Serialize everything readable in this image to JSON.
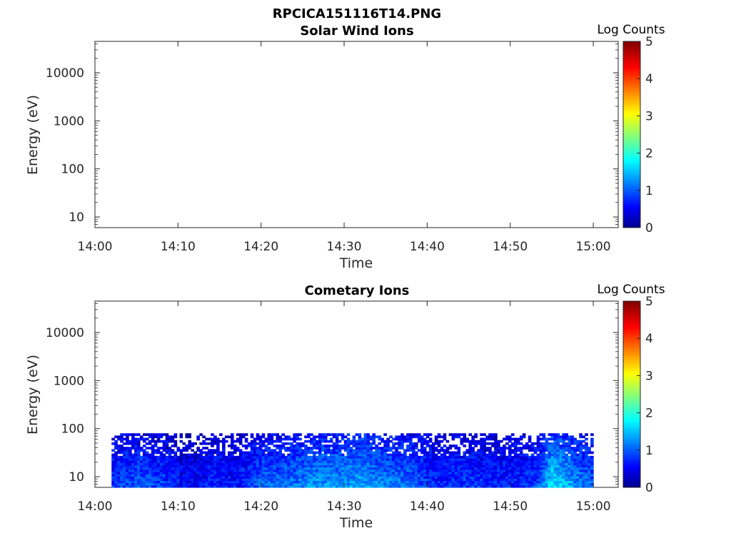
{
  "figure": {
    "title": "RPCICA151116T14.PNG"
  },
  "colorscale": {
    "name": "jet",
    "stops": [
      "#00008f",
      "#0000ff",
      "#00ffff",
      "#ffff00",
      "#ff0000",
      "#800000"
    ]
  },
  "chart_data": [
    {
      "type": "heatmap",
      "title": "Solar Wind Ions",
      "xlabel": "Time",
      "ylabel": "Energy (eV)",
      "x_ticks": [
        "14:00",
        "14:10",
        "14:20",
        "14:30",
        "14:40",
        "14:50",
        "15:00"
      ],
      "y_ticks": [
        "10",
        "100",
        "1000",
        "10000"
      ],
      "y_scale": "log",
      "xlim": [
        "14:00",
        "15:03"
      ],
      "ylim": [
        6,
        45000
      ],
      "colorbar": {
        "label": "Log Counts",
        "ticks": [
          "0",
          "1",
          "2",
          "3",
          "4",
          "5"
        ],
        "range": [
          0,
          5
        ]
      },
      "data": []
    },
    {
      "type": "heatmap",
      "title": "Cometary Ions",
      "xlabel": "Time",
      "ylabel": "Energy (eV)",
      "x_ticks": [
        "14:00",
        "14:10",
        "14:20",
        "14:30",
        "14:40",
        "14:50",
        "15:00"
      ],
      "y_ticks": [
        "10",
        "100",
        "1000",
        "10000"
      ],
      "y_scale": "log",
      "xlim": [
        "14:00",
        "15:03"
      ],
      "ylim": [
        6,
        45000
      ],
      "colorbar": {
        "label": "Log Counts",
        "ticks": [
          "0",
          "1",
          "2",
          "3",
          "4",
          "5"
        ],
        "range": [
          0,
          5
        ]
      },
      "data_extent": {
        "time": [
          "14:02",
          "15:00"
        ],
        "energy_eV": [
          6,
          80
        ]
      },
      "data_profile": {
        "description_range_log_counts": [
          0.2,
          1.9
        ],
        "time": [
          "14:02",
          "14:05",
          "14:08",
          "14:11",
          "14:14",
          "14:17",
          "14:20",
          "14:23",
          "14:26",
          "14:29",
          "14:32",
          "14:35",
          "14:38",
          "14:41",
          "14:44",
          "14:47",
          "14:50",
          "14:53",
          "14:55",
          "14:58",
          "15:00"
        ],
        "mean_log_counts": [
          0.8,
          0.9,
          0.8,
          0.5,
          0.7,
          0.6,
          1.0,
          1.0,
          1.2,
          1.2,
          1.3,
          1.1,
          1.0,
          0.7,
          0.8,
          0.7,
          0.7,
          0.8,
          1.6,
          1.1,
          0.9
        ]
      }
    }
  ]
}
